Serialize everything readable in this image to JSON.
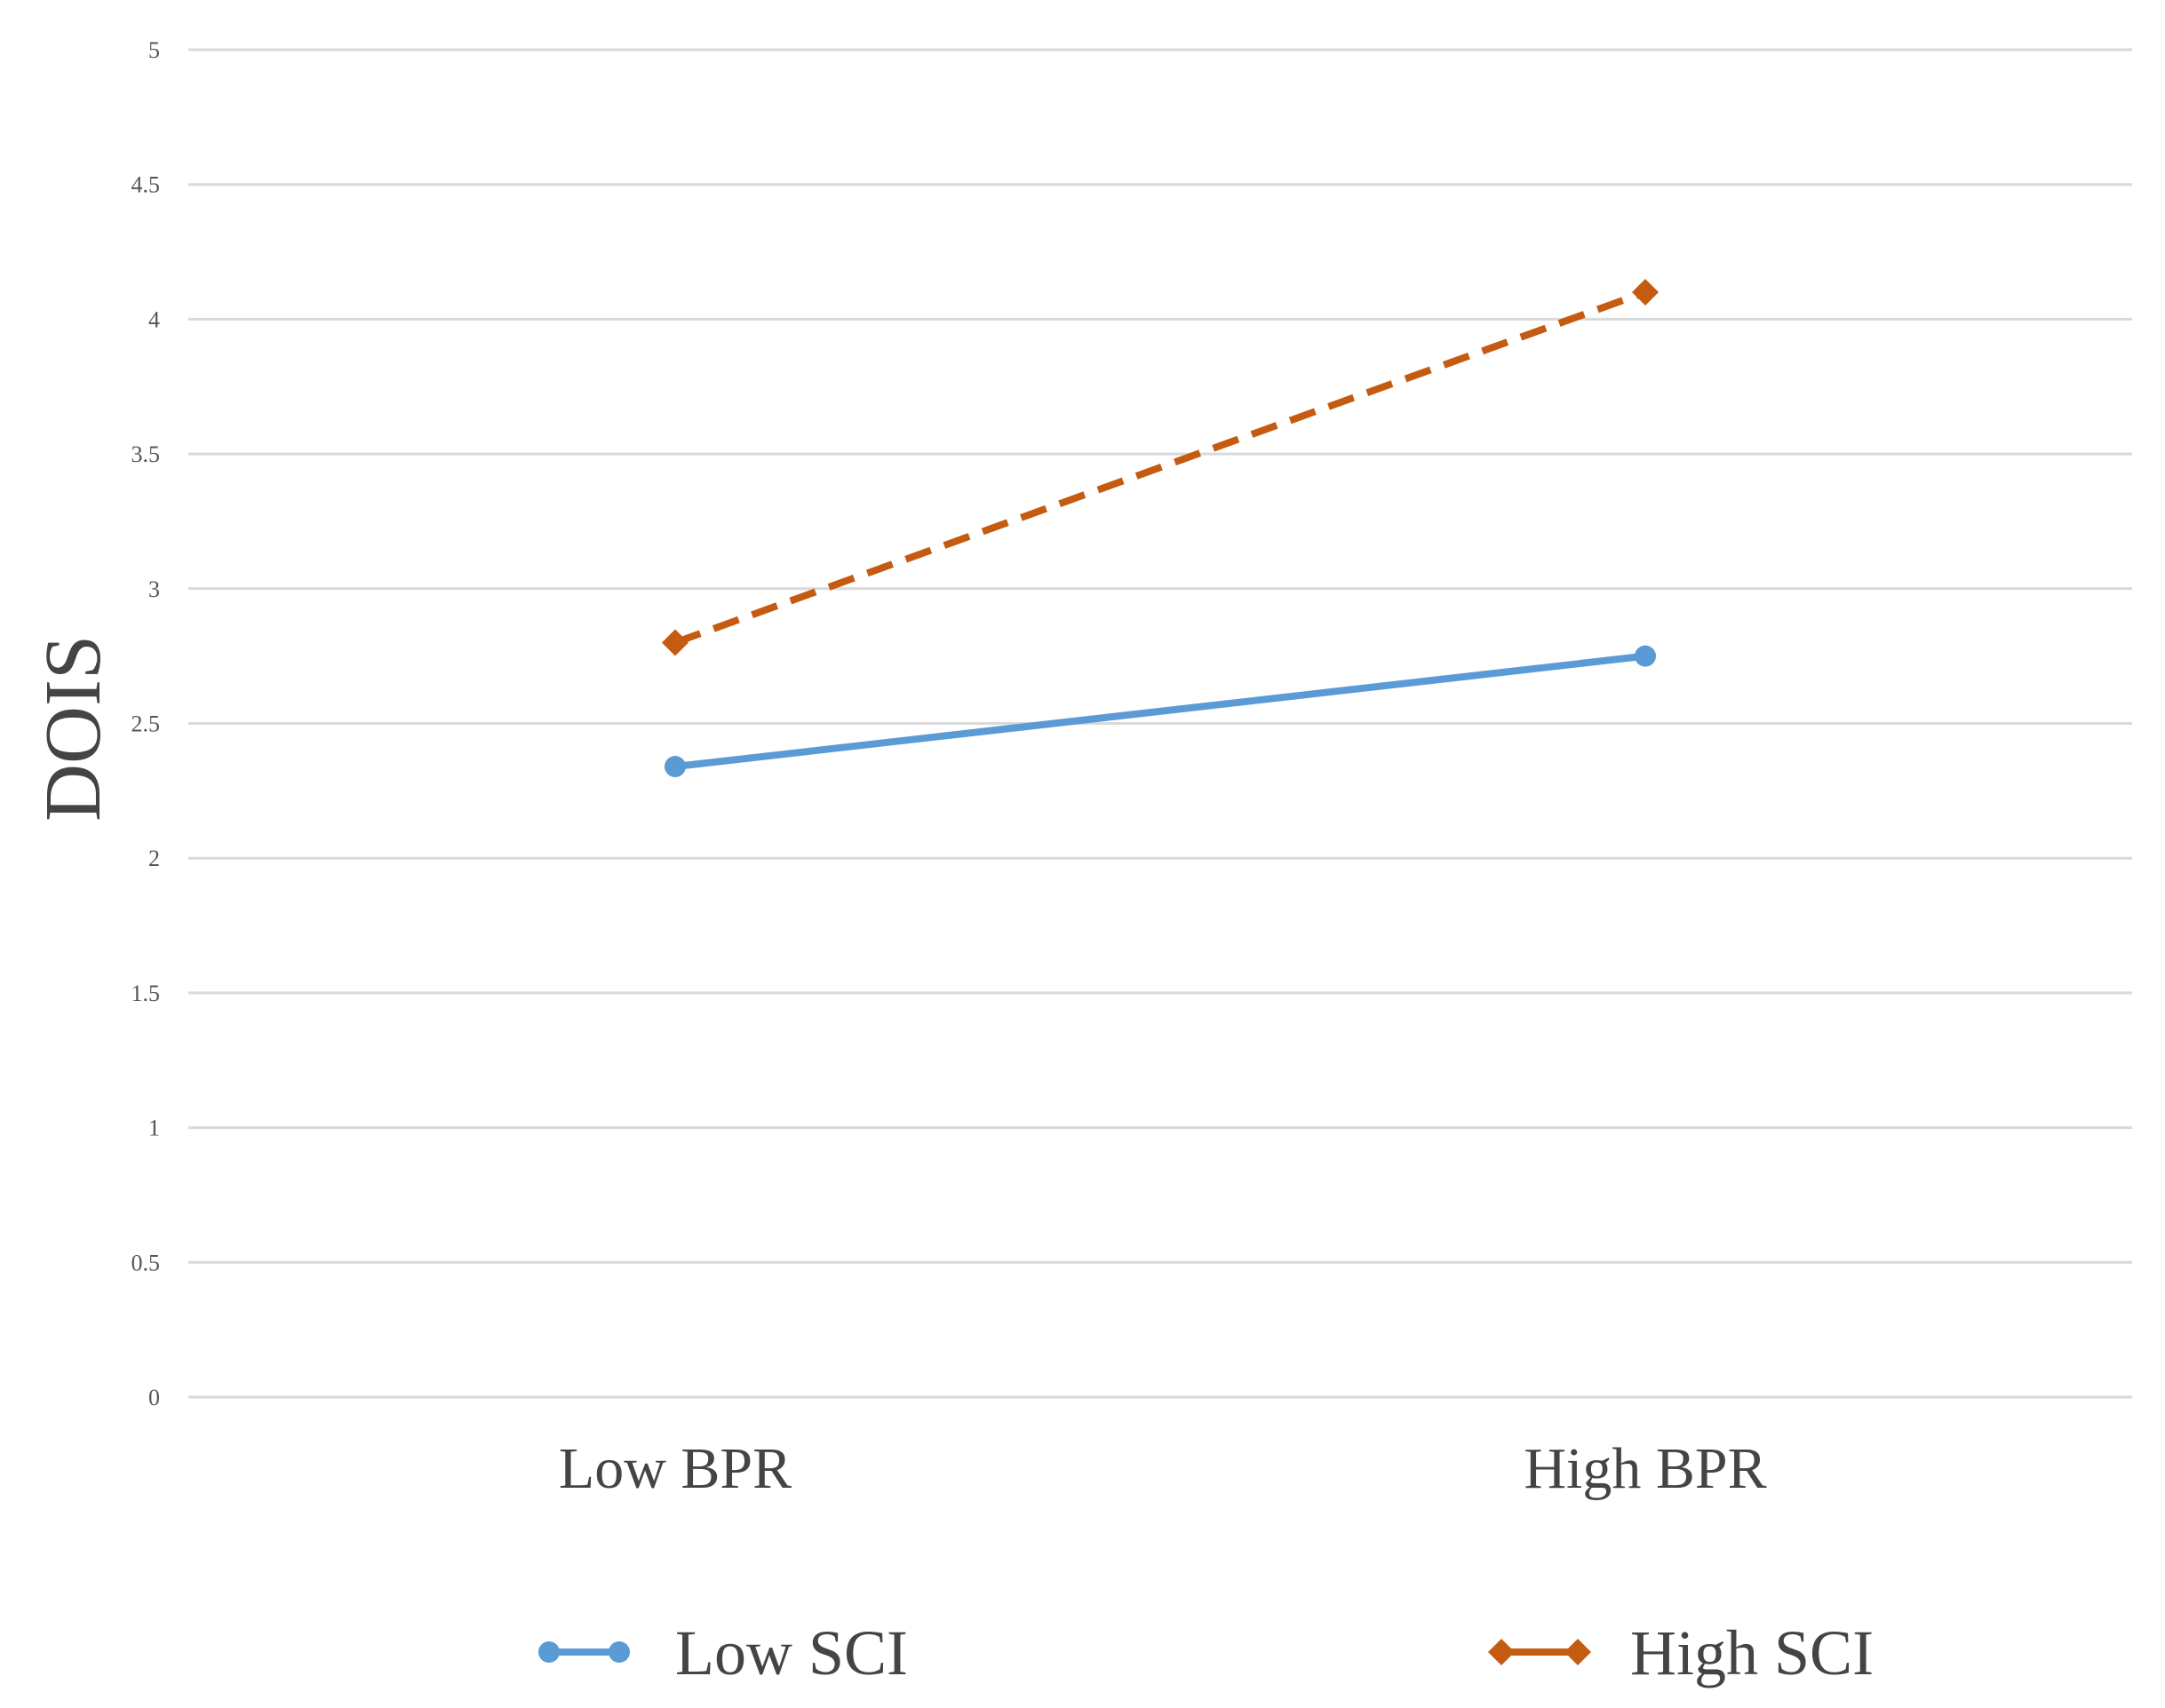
{
  "chart_data": {
    "type": "line",
    "title": "",
    "xlabel": "",
    "ylabel": "DOIS",
    "categories": [
      "Low BPR",
      "High BPR"
    ],
    "ylim": [
      0,
      5
    ],
    "yticks": [
      0,
      0.5,
      1,
      1.5,
      2,
      2.5,
      3,
      3.5,
      4,
      4.5,
      5
    ],
    "ytick_labels": [
      "0",
      "0.5",
      "1",
      "1.5",
      "2",
      "2.5",
      "3",
      "3.5",
      "4",
      "4.5",
      "5"
    ],
    "grid": true,
    "legend_position": "bottom",
    "series": [
      {
        "name": "Low SCI",
        "values": [
          2.34,
          2.75
        ],
        "color": "#5b9bd5",
        "marker": "circle",
        "line_style": "solid"
      },
      {
        "name": "High SCI",
        "values": [
          2.8,
          4.1
        ],
        "color": "#c55a11",
        "marker": "diamond",
        "line_style": "dashed"
      }
    ]
  }
}
